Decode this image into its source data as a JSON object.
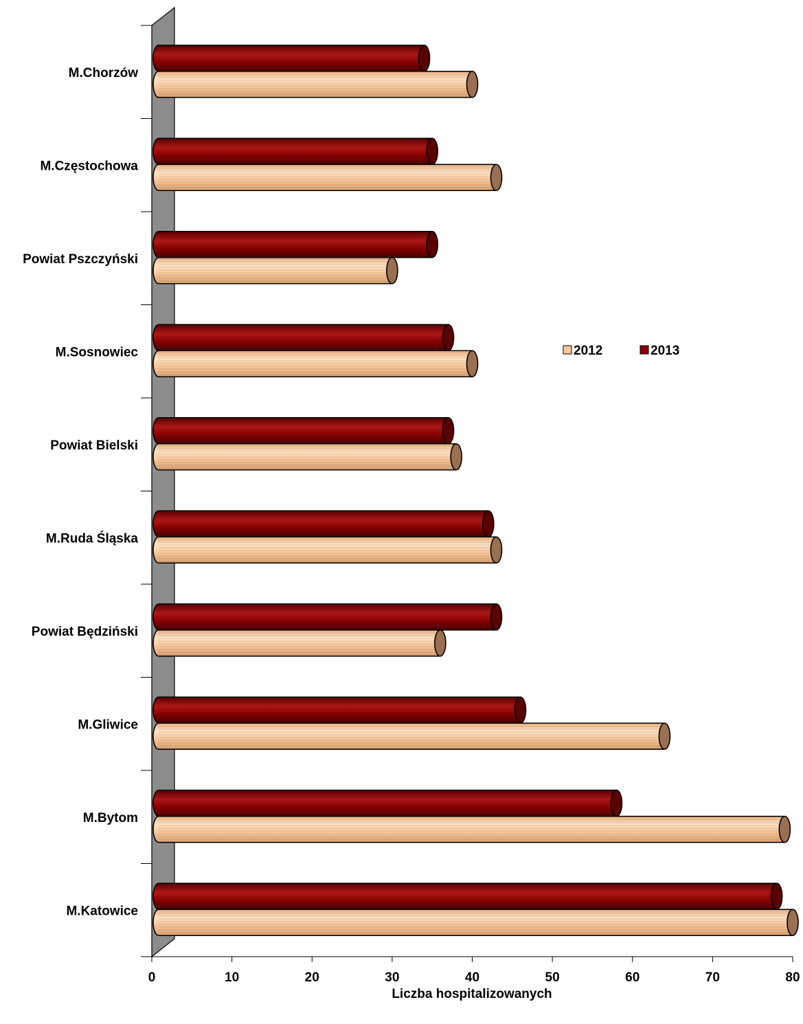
{
  "chart_data": {
    "type": "bar",
    "orientation": "horizontal",
    "categories": [
      "M.Chorzów",
      "M.Częstochowa",
      "Powiat Pszczyński",
      "M.Sosnowiec",
      "Powiat Bielski",
      "M.Ruda Śląska",
      "Powiat Będziński",
      "M.Gliwice",
      "M.Bytom",
      "M.Katowice"
    ],
    "series": [
      {
        "name": "2012",
        "color": "#F9C89B",
        "values": [
          40,
          43,
          30,
          40,
          38,
          43,
          36,
          64,
          79,
          80
        ]
      },
      {
        "name": "2013",
        "color": "#8B0000",
        "values": [
          34,
          35,
          35,
          37,
          37,
          42,
          43,
          46,
          58,
          78
        ]
      }
    ],
    "xlabel": "Liczba hospitalizowanych",
    "xlim": [
      0,
      80
    ],
    "xticks": [
      "0",
      "10",
      "20",
      "30",
      "40",
      "50",
      "60",
      "70",
      "80"
    ],
    "legend": {
      "position": "right",
      "entries": [
        "2012",
        "2013"
      ]
    },
    "grid": false
  }
}
